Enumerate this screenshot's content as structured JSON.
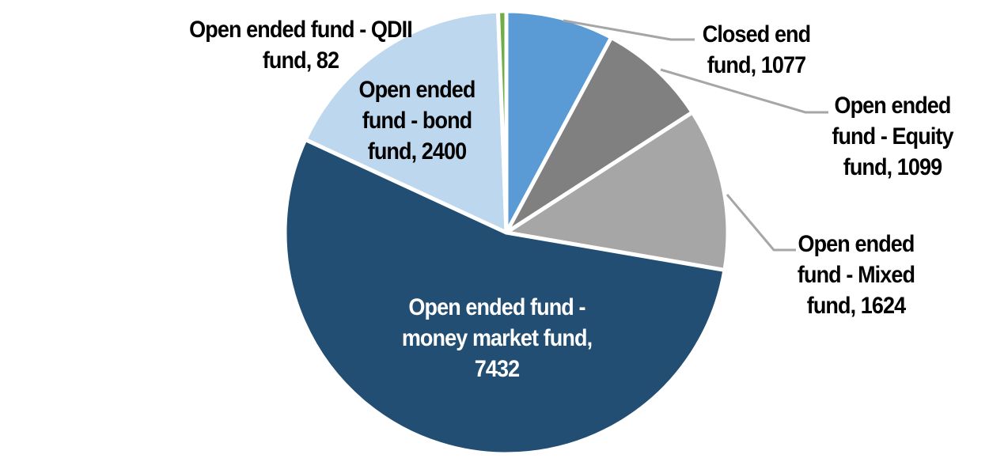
{
  "chart_data": {
    "type": "pie",
    "title": "",
    "legend": "none",
    "start_angle_deg": 0,
    "direction": "clockwise",
    "background_color": "#FFFFFF",
    "separator_color": "#FFFFFF",
    "leader_line_color": "#A6A6A6",
    "slices": [
      {
        "name": "Closed end fund",
        "value": 1077,
        "color": "#5B9BD5",
        "label": "Closed end\nfund, 1077",
        "label_color": "#000000",
        "label_position": "outside-top-right",
        "leader_line": true
      },
      {
        "name": "Open ended fund - Equity fund",
        "value": 1099,
        "color": "#808080",
        "label": "Open ended\nfund - Equity\nfund, 1099",
        "label_color": "#000000",
        "label_position": "outside-right",
        "leader_line": true
      },
      {
        "name": "Open ended fund - Mixed fund",
        "value": 1624,
        "color": "#A6A6A6",
        "label": "Open ended\nfund - Mixed\nfund, 1624",
        "label_color": "#000000",
        "label_position": "outside-right",
        "leader_line": true
      },
      {
        "name": "Open ended fund - money market fund",
        "value": 7432,
        "color": "#214E72",
        "label": "Open ended fund -\nmoney market fund,\n7432",
        "label_color": "#FFFFFF",
        "label_position": "inside",
        "leader_line": false
      },
      {
        "name": "Open ended fund - bond fund",
        "value": 2400,
        "color": "#BDD7EE",
        "label": "Open ended\nfund - bond\nfund, 2400",
        "label_color": "#000000",
        "label_position": "inside",
        "leader_line": false
      },
      {
        "name": "Open ended fund - QDII fund",
        "value": 82,
        "color": "#70AD47",
        "label": "Open ended fund - QDII\nfund, 82",
        "label_color": "#000000",
        "label_position": "outside-top-left",
        "leader_line": false
      }
    ]
  }
}
